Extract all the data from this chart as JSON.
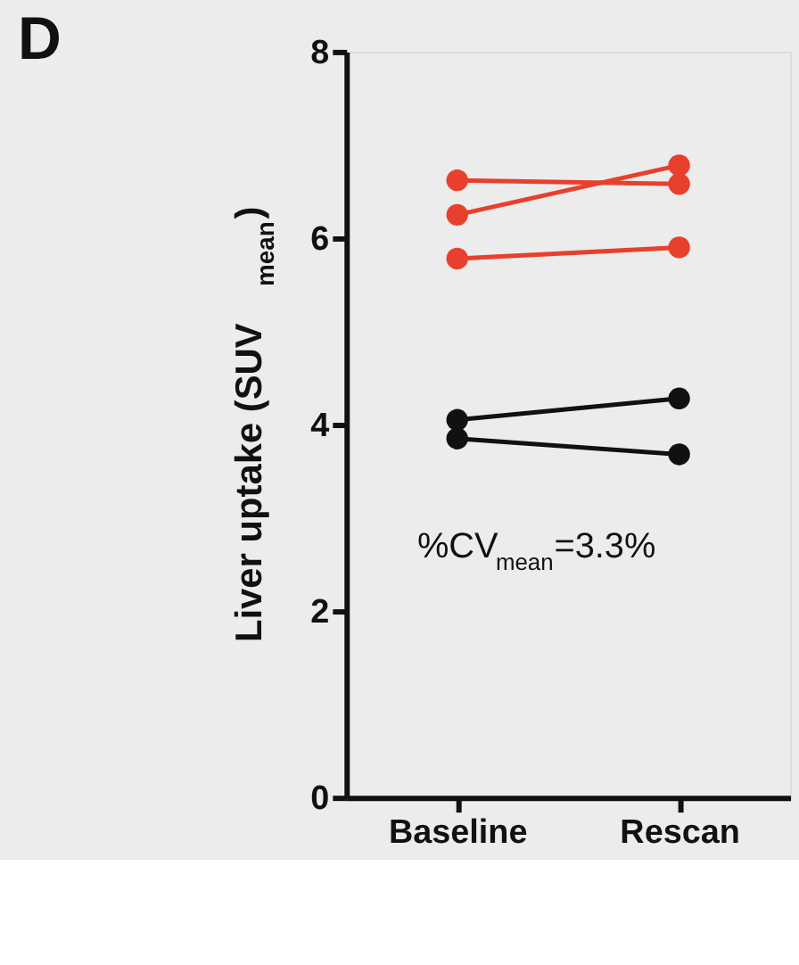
{
  "chart_data": {
    "type": "line",
    "title": "D",
    "ylabel": "Liver uptake (SUV$_{mean}$)",
    "categories": [
      "Baseline",
      "Rescan"
    ],
    "series": [
      {
        "color": "#e8402c",
        "values": [
          6.62,
          6.58
        ]
      },
      {
        "color": "#e8402c",
        "values": [
          6.25,
          6.78
        ]
      },
      {
        "color": "#e8402c",
        "values": [
          5.78,
          5.9
        ]
      },
      {
        "color": "#111111",
        "values": [
          4.05,
          4.28
        ]
      },
      {
        "color": "#111111",
        "values": [
          3.85,
          3.68
        ]
      }
    ],
    "ylim": [
      0,
      8
    ],
    "yticks": [
      0,
      2,
      4,
      6,
      8
    ],
    "annotations": [
      "%CV$_{mean}$=3.3%"
    ],
    "marker": "circle",
    "line_style": "solid",
    "grid": false,
    "legend": false
  }
}
